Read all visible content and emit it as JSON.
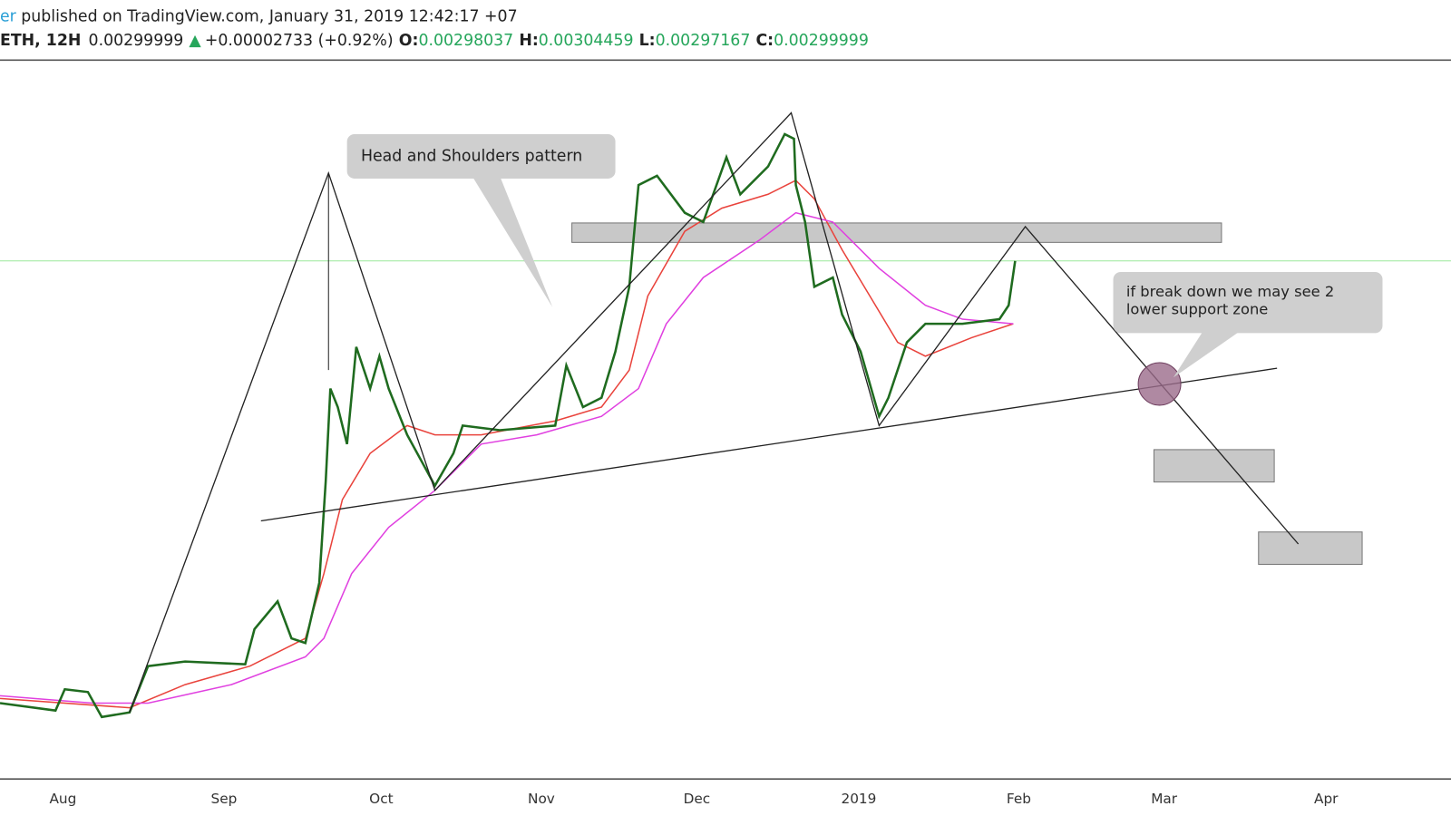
{
  "header": {
    "publisher": "er",
    "published": " published on TradingView.com, January 31, 2019 12:42:17 +07",
    "symbol": "ETH, 12H",
    "last": "0.00299999",
    "arrow": "▲",
    "change": "+0.00002733 (+0.92%)",
    "ohlc": [
      {
        "key": "O:",
        "value": "0.00298037"
      },
      {
        "key": "H:",
        "value": "0.00304459"
      },
      {
        "key": "L:",
        "value": "0.00297167"
      },
      {
        "key": "C:",
        "value": "0.00299999"
      }
    ]
  },
  "annotations": {
    "pattern": "Head and Shoulders pattern",
    "breakdown": [
      "if break down we may see 2",
      "lower support zone"
    ]
  },
  "x_axis": [
    "Aug",
    "Sep",
    "Oct",
    "Nov",
    "Dec",
    "2019",
    "Feb",
    "Mar",
    "Apr"
  ]
}
